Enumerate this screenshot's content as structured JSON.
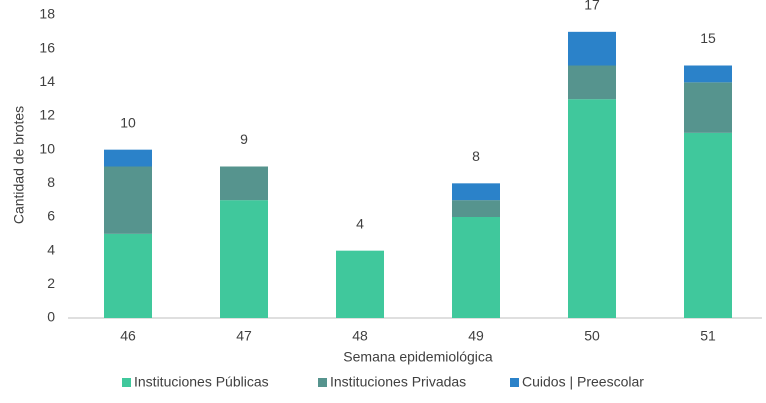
{
  "chart_data": {
    "type": "stacked_bar",
    "x_label": "Semana epidemiológica",
    "y_label": "Cantidad de brotes",
    "categories": [
      "46",
      "47",
      "48",
      "49",
      "50",
      "51"
    ],
    "series": [
      {
        "name": "Instituciones Públicas",
        "color": "#40c89c",
        "values": [
          5,
          7,
          4,
          6,
          13,
          11
        ]
      },
      {
        "name": "Instituciones Privadas",
        "color": "#56948e",
        "values": [
          4,
          2,
          0,
          1,
          2,
          3
        ]
      },
      {
        "name": "Cuidos | Preescolar",
        "color": "#2b82c9",
        "values": [
          1,
          0,
          0,
          1,
          2,
          1
        ]
      }
    ],
    "totals": [
      10,
      9,
      4,
      8,
      17,
      15
    ],
    "ylim": [
      0,
      18
    ],
    "yticks": [
      0,
      2,
      4,
      6,
      8,
      10,
      12,
      14,
      16,
      18
    ],
    "grid": false,
    "legend": "bottom"
  }
}
